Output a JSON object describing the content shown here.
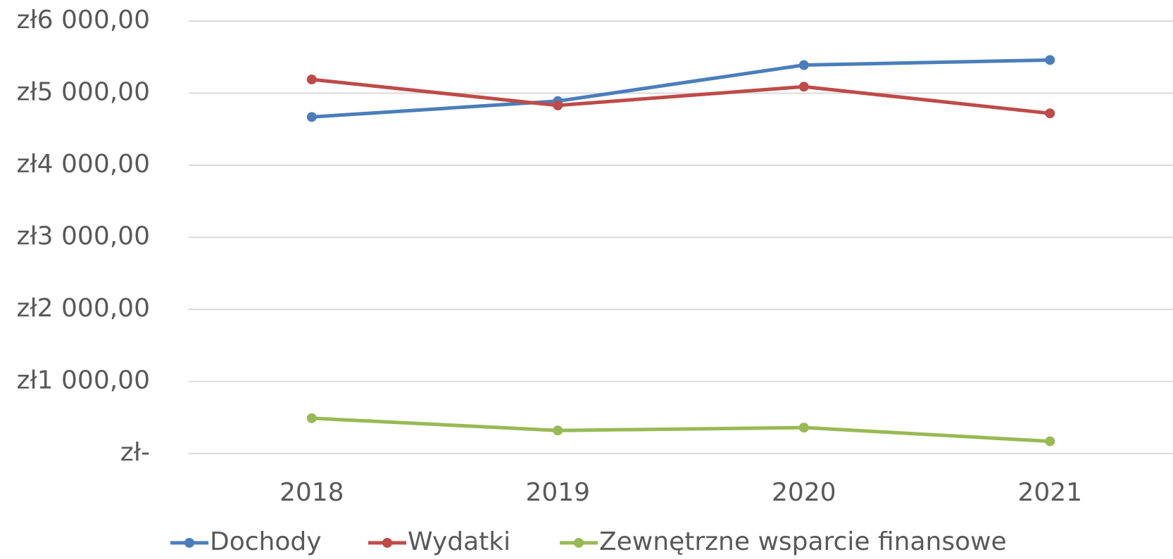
{
  "chart_data": {
    "type": "line",
    "categories": [
      "2018",
      "2019",
      "2020",
      "2021"
    ],
    "series": [
      {
        "name": "Dochody",
        "color": "#4a7ebb",
        "values": [
          4670,
          4890,
          5390,
          5460
        ]
      },
      {
        "name": "Wydatki",
        "color": "#be4b48",
        "values": [
          5190,
          4830,
          5090,
          4720
        ]
      },
      {
        "name": "Zewnętrzne wsparcie finansowe",
        "color": "#98b954",
        "values": [
          490,
          320,
          360,
          170
        ]
      }
    ],
    "ylim": [
      0,
      6000
    ],
    "yticks": [
      {
        "value": 0,
        "label": "zł-"
      },
      {
        "value": 1000,
        "label": "zł1 000,00"
      },
      {
        "value": 2000,
        "label": "zł2 000,00"
      },
      {
        "value": 3000,
        "label": "zł3 000,00"
      },
      {
        "value": 4000,
        "label": "zł4 000,00"
      },
      {
        "value": 5000,
        "label": "zł5 000,00"
      },
      {
        "value": 6000,
        "label": "zł6 000,00"
      }
    ],
    "grid": true,
    "legend": "bottom"
  }
}
